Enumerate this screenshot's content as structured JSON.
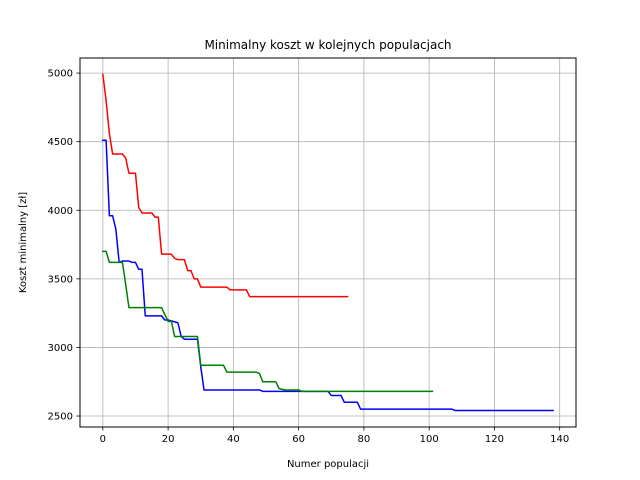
{
  "chart_data": {
    "type": "line",
    "title": "Minimalny koszt w kolejnych populacjach",
    "xlabel": "Numer populacji",
    "ylabel": "Koszt minimalny [zł]",
    "xlim": [
      -7,
      145
    ],
    "ylim": [
      2420,
      5110
    ],
    "xticks": [
      0,
      20,
      40,
      60,
      80,
      100,
      120,
      140
    ],
    "yticks": [
      2500,
      3000,
      3500,
      4000,
      4500,
      5000
    ],
    "grid": true,
    "legend": "none",
    "series": [
      {
        "color": "#ff0000",
        "x": [
          0,
          1,
          2,
          3,
          4,
          5,
          6,
          7,
          8,
          9,
          10,
          11,
          12,
          13,
          14,
          15,
          16,
          17,
          18,
          19,
          20,
          21,
          22,
          23,
          24,
          25,
          26,
          27,
          28,
          29,
          30,
          38,
          39,
          40,
          44,
          45,
          75
        ],
        "y": [
          4990,
          4800,
          4560,
          4410,
          4410,
          4410,
          4410,
          4380,
          4270,
          4270,
          4270,
          4020,
          3980,
          3980,
          3980,
          3980,
          3950,
          3950,
          3680,
          3680,
          3680,
          3680,
          3650,
          3640,
          3640,
          3640,
          3560,
          3560,
          3500,
          3500,
          3440,
          3440,
          3420,
          3420,
          3420,
          3370,
          3370
        ]
      },
      {
        "color": "#0000ff",
        "x": [
          0,
          1,
          2,
          3,
          4,
          5,
          6,
          7,
          8,
          9,
          10,
          11,
          12,
          13,
          17,
          18,
          19,
          20,
          23,
          24,
          25,
          26,
          29,
          30,
          31,
          48,
          49,
          56,
          57,
          69,
          70,
          73,
          74,
          78,
          79,
          107,
          108,
          138
        ],
        "y": [
          4510,
          4510,
          3960,
          3960,
          3860,
          3620,
          3630,
          3630,
          3630,
          3620,
          3620,
          3570,
          3570,
          3230,
          3230,
          3230,
          3200,
          3200,
          3180,
          3080,
          3060,
          3060,
          3060,
          2860,
          2690,
          2690,
          2680,
          2680,
          2680,
          2680,
          2650,
          2650,
          2600,
          2600,
          2550,
          2550,
          2540,
          2540
        ]
      },
      {
        "color": "#008000",
        "x": [
          0,
          1,
          2,
          3,
          4,
          5,
          6,
          7,
          8,
          9,
          18,
          19,
          20,
          21,
          22,
          29,
          30,
          37,
          38,
          47,
          48,
          49,
          53,
          54,
          56,
          60,
          61,
          66,
          67,
          101
        ],
        "y": [
          3700,
          3700,
          3620,
          3620,
          3620,
          3620,
          3620,
          3460,
          3290,
          3290,
          3290,
          3240,
          3190,
          3190,
          3080,
          3080,
          2870,
          2870,
          2820,
          2820,
          2810,
          2750,
          2750,
          2700,
          2690,
          2690,
          2680,
          2680,
          2680,
          2680
        ]
      }
    ]
  }
}
